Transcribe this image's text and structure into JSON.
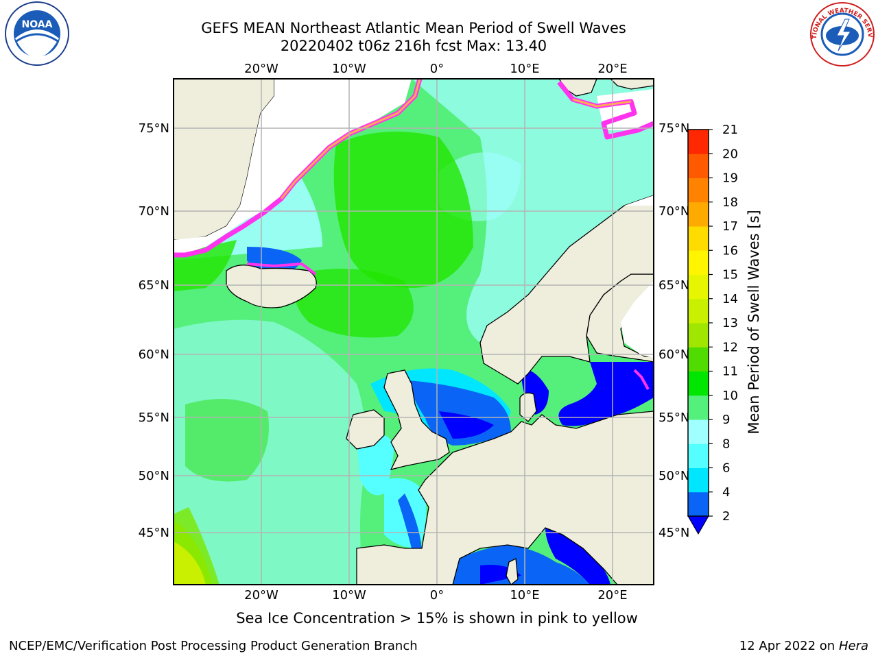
{
  "header": {
    "title_line1": "GEFS MEAN Northeast Atlantic Mean Period of Swell Waves",
    "title_line2": "20220402 t06z 216h fcst   Max: 13.40"
  },
  "map": {
    "lon_ticks": [
      "20°W",
      "10°W",
      "0°",
      "10°E",
      "20°E"
    ],
    "lat_ticks": [
      "75°N",
      "70°N",
      "65°N",
      "60°N",
      "55°N",
      "50°N",
      "45°N"
    ],
    "colors": {
      "land": "#efeedd",
      "ocean_main": "#55f07c",
      "ice_edge": "#ff33ee",
      "grid": "#b3b3b3"
    }
  },
  "colorbar": {
    "label": "Mean Period of Swell Waves [s]",
    "ticks": [
      "2",
      "4",
      "6",
      "8",
      "9",
      "10",
      "11",
      "12",
      "13",
      "14",
      "15",
      "16",
      "17",
      "18",
      "19",
      "20",
      "21"
    ],
    "colors": [
      "#0a64f5",
      "#00e6ff",
      "#55ffff",
      "#a0ffff",
      "#55f07c",
      "#00e600",
      "#50dc00",
      "#a0e600",
      "#c8f000",
      "#e6f500",
      "#fff500",
      "#ffdc00",
      "#ffaa00",
      "#ff8200",
      "#ff5a00",
      "#ff2800"
    ],
    "under_color": "#0000ff"
  },
  "footer": {
    "note": "Sea Ice Concentration > 15% is shown in pink to yellow",
    "credit": "NCEP/EMC/Verification Post Processing Product Generation Branch",
    "date": "12 Apr 2022 on",
    "host": "Hera"
  },
  "logos": {
    "noaa": "NOAA",
    "nws": "NATIONAL WEATHER SERVICE"
  }
}
